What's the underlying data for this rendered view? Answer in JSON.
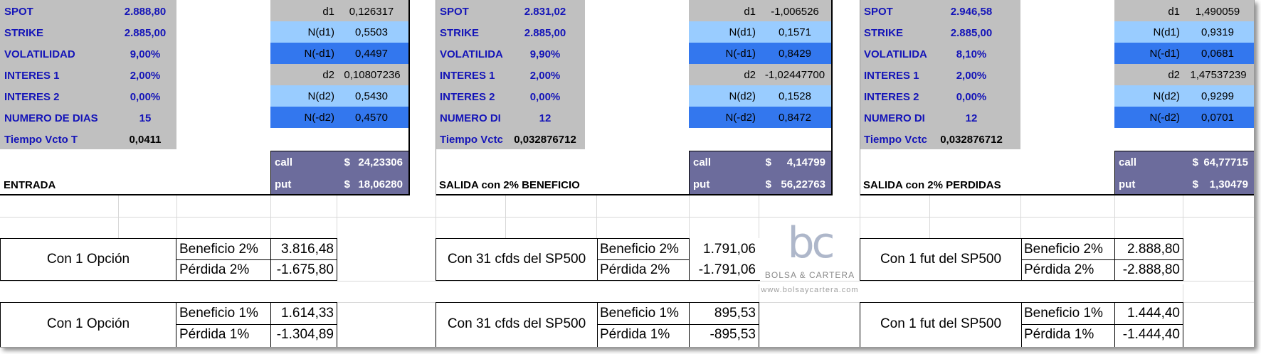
{
  "blocks": [
    {
      "spot_label": "SPOT",
      "spot": "2.888,80",
      "strike_label": "STRIKE",
      "strike": "2.885,00",
      "vol_label": "VOLATILIDAD",
      "vol": "9,00%",
      "i1_label": "INTERES 1",
      "i1": "2,00%",
      "i2_label": "INTERES 2",
      "i2": "0,00%",
      "days_label": "NUMERO DE DIAS",
      "days": "15",
      "t_label": "Tiempo Vcto T",
      "t": "0,0411",
      "d1_label": "d1",
      "d1": "0,126317",
      "nd1_label": "N(d1)",
      "nd1": "0,5503",
      "nmd1_label": "N(-d1)",
      "nmd1": "0,4497",
      "d2_label": "d2",
      "d2": "0,10807236",
      "nd2_label": "N(d2)",
      "nd2": "0,5430",
      "nmd2_label": "N(-d2)",
      "nmd2": "0,4570",
      "call_label": "call",
      "call_cur": "$",
      "call": "24,23306",
      "put_label": "put",
      "put_cur": "$",
      "put": "18,06280",
      "title": "ENTRADA"
    },
    {
      "spot_label": "SPOT",
      "spot": "2.831,02",
      "strike_label": "STRIKE",
      "strike": "2.885,00",
      "vol_label": "VOLATILIDA",
      "vol": "9,90%",
      "i1_label": "INTERES 1",
      "i1": "2,00%",
      "i2_label": "INTERES 2",
      "i2": "0,00%",
      "days_label": "NUMERO DI",
      "days": "12",
      "t_label": "Tiempo Vctc",
      "t": "0,032876712",
      "d1_label": "d1",
      "d1": "-1,006526",
      "nd1_label": "N(d1)",
      "nd1": "0,1571",
      "nmd1_label": "N(-d1)",
      "nmd1": "0,8429",
      "d2_label": "d2",
      "d2": "-1,02447700",
      "nd2_label": "N(d2)",
      "nd2": "0,1528",
      "nmd2_label": "N(-d2)",
      "nmd2": "0,8472",
      "call_label": "call",
      "call_cur": "$",
      "call": "4,14799",
      "put_label": "put",
      "put_cur": "$",
      "put": "56,22763",
      "title": "SALIDA con 2%  BENEFICIO"
    },
    {
      "spot_label": "SPOT",
      "spot": "2.946,58",
      "strike_label": "STRIKE",
      "strike": "2.885,00",
      "vol_label": "VOLATILIDA",
      "vol": "8,10%",
      "i1_label": "INTERES 1",
      "i1": "2,00%",
      "i2_label": "INTERES 2",
      "i2": "0,00%",
      "days_label": "NUMERO DI",
      "days": "12",
      "t_label": "Tiempo Vctc",
      "t": "0,032876712",
      "d1_label": "d1",
      "d1": "1,490059",
      "nd1_label": "N(d1)",
      "nd1": "0,9319",
      "nmd1_label": "N(-d1)",
      "nmd1": "0,0681",
      "d2_label": "d2",
      "d2": "1,47537239",
      "nd2_label": "N(d2)",
      "nd2": "0,9299",
      "nmd2_label": "N(-d2)",
      "nmd2": "0,0701",
      "call_label": "call",
      "call_cur": "$",
      "call": "64,77715",
      "put_label": "put",
      "put_cur": "$",
      "put": "1,30479",
      "title": "SALIDA con 2% PERDIDAS"
    }
  ],
  "results2": [
    {
      "title": "Con 1 Opción",
      "ben_label": "Beneficio 2%",
      "ben": "3.816,48",
      "per_label": "Pérdida 2%",
      "per": "-1.675,80"
    },
    {
      "title": "Con 31 cfds del SP500",
      "ben_label": "Beneficio 2%",
      "ben": "1.791,06",
      "per_label": "Pérdida 2%",
      "per": "-1.791,06"
    },
    {
      "title": "Con 1 fut del SP500",
      "ben_label": "Beneficio 2%",
      "ben": "2.888,80",
      "per_label": "Pérdida 2%",
      "per": "-2.888,80"
    }
  ],
  "results1": [
    {
      "title": "Con 1 Opción",
      "ben_label": "Beneficio 1%",
      "ben": "1.614,33",
      "per_label": "Pérdida 1%",
      "per": "-1.304,89"
    },
    {
      "title": "Con 31 cfds del SP500",
      "ben_label": "Beneficio 1%",
      "ben": "895,53",
      "per_label": "Pérdida 1%",
      "per": "-895,53"
    },
    {
      "title": "Con 1 fut del SP500",
      "ben_label": "Beneficio 1%",
      "ben": "1.444,40",
      "per_label": "Pérdida 1%",
      "per": "-1.444,40"
    }
  ],
  "watermark": {
    "letters": "bc",
    "brand": "BOLSA & CARTERA",
    "url": "www.bolsaycartera.com"
  },
  "colors": {
    "grey": "#c0c0c0",
    "light_blue": "#99ccff",
    "dark_blue": "#3377ee",
    "purple": "#6c6c9c",
    "label_text": "#1414b8"
  }
}
